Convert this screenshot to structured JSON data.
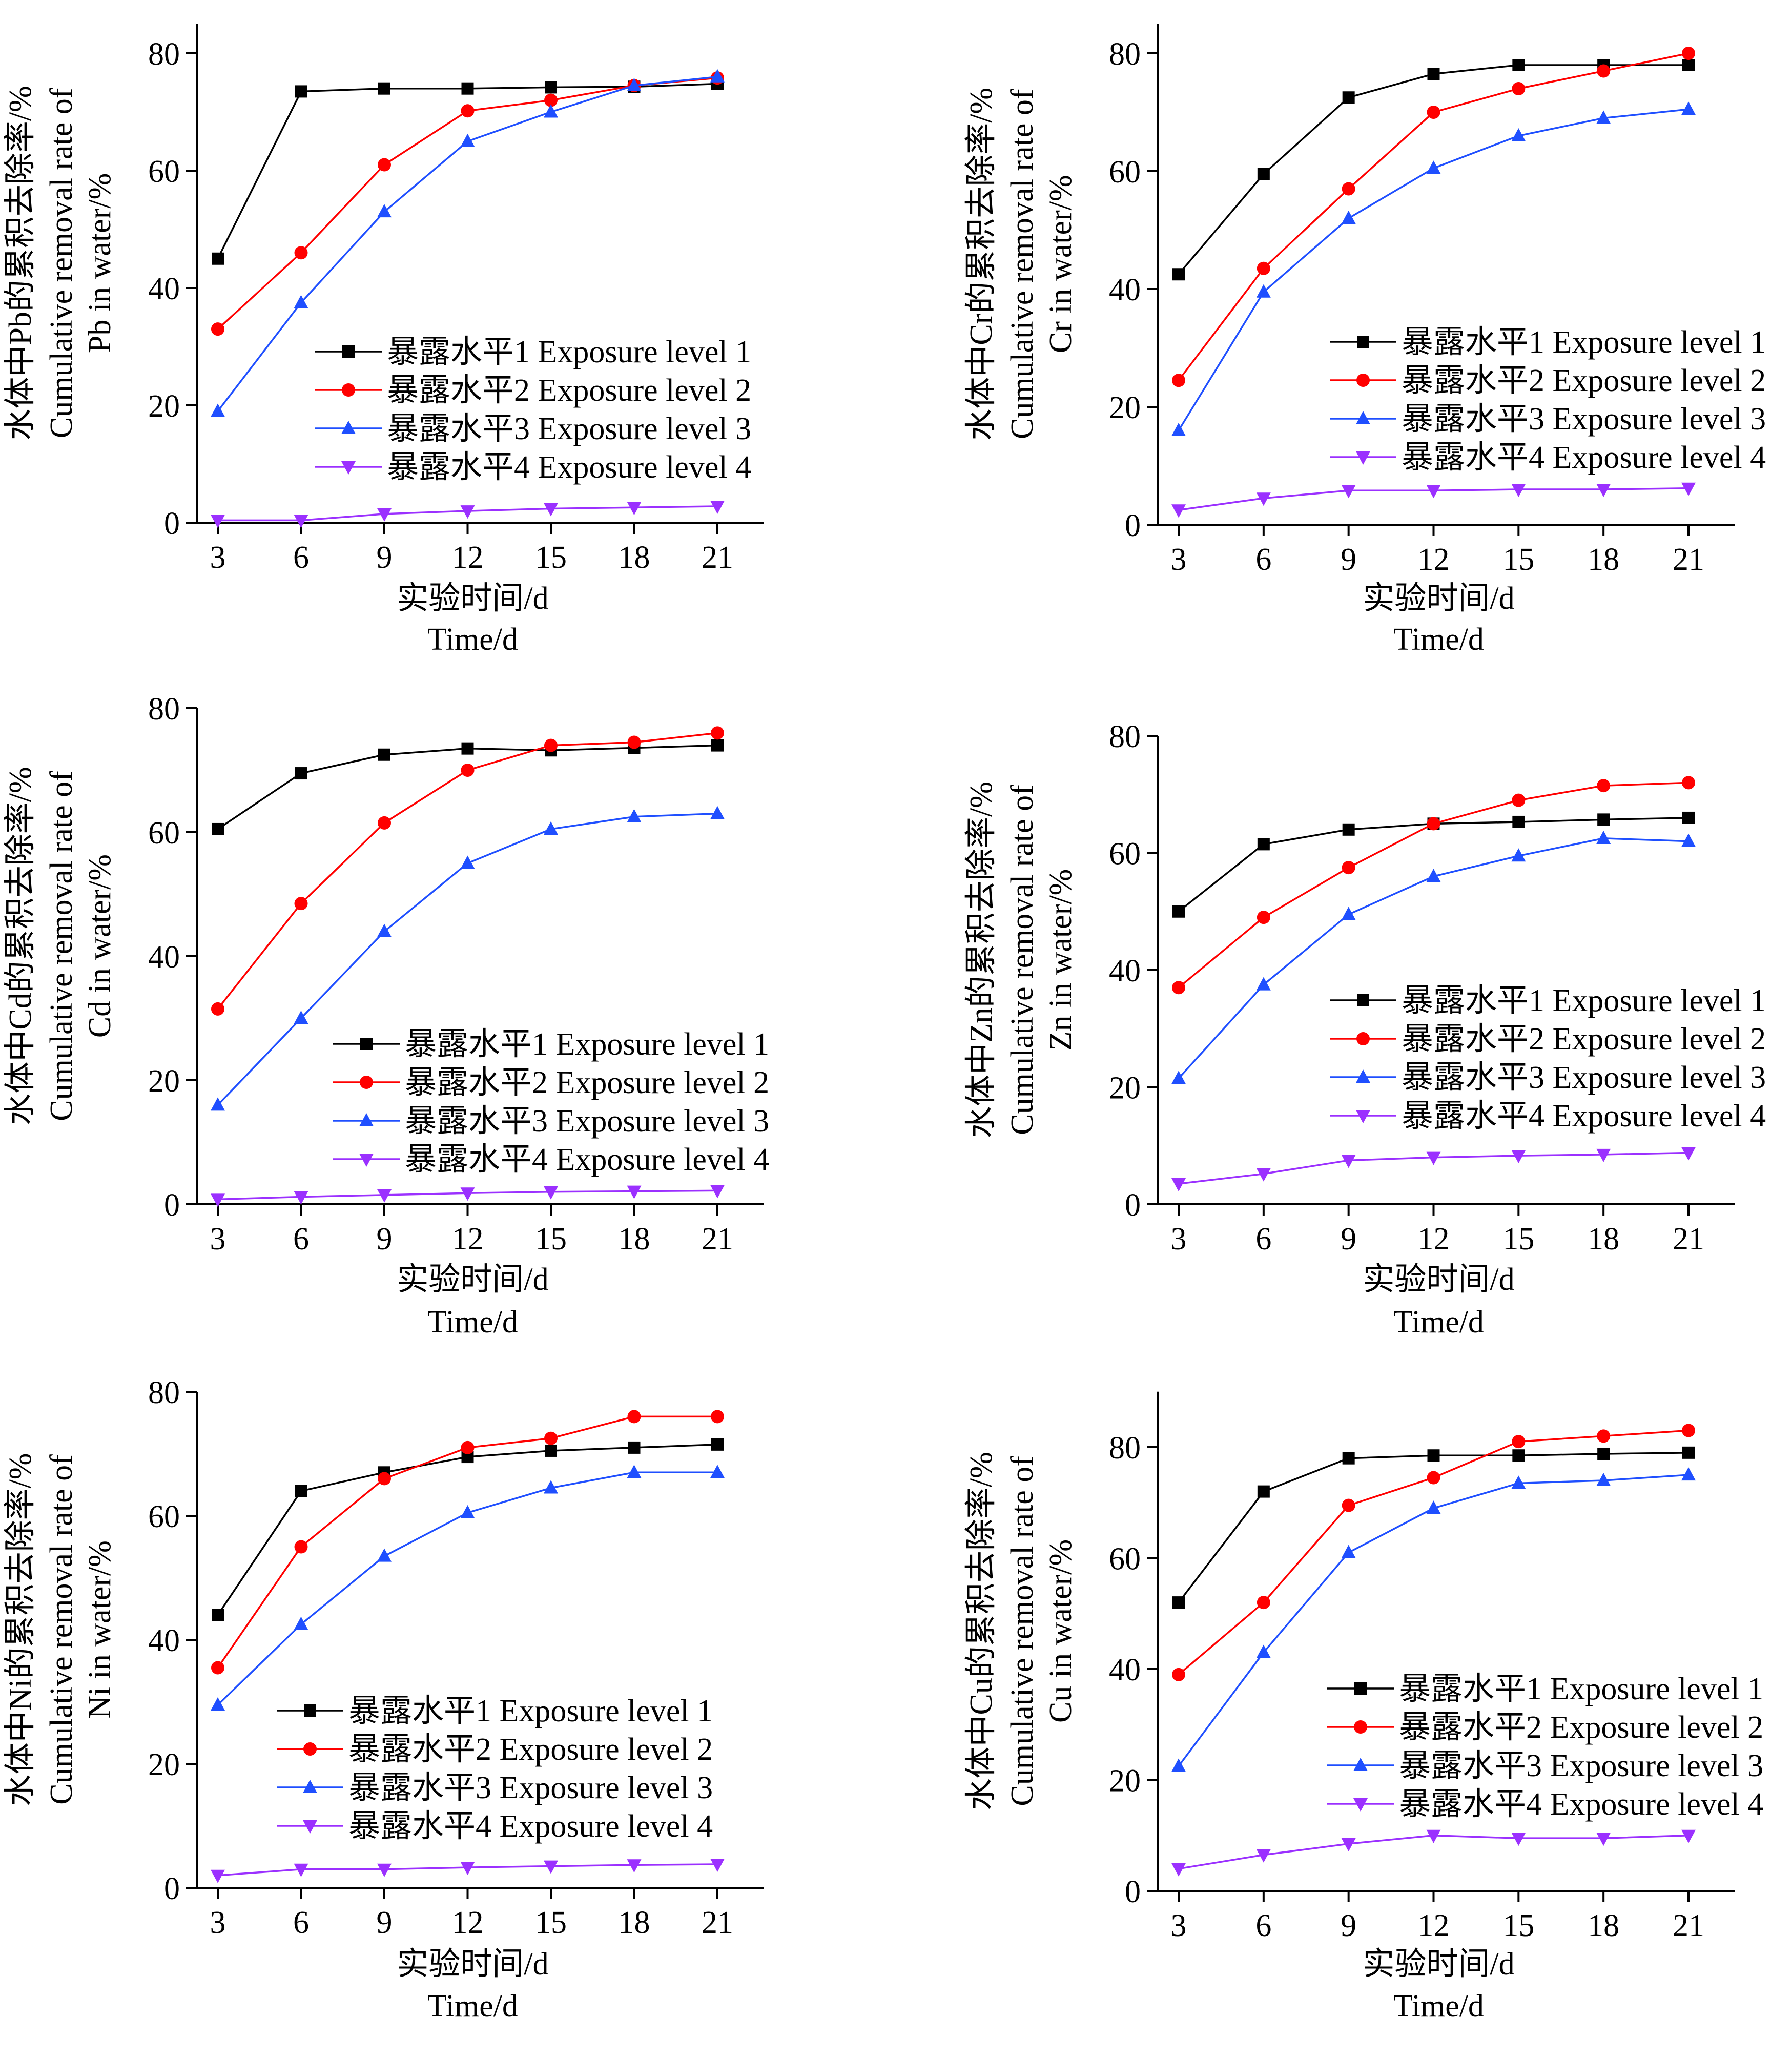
{
  "x_ticks": [
    3,
    6,
    9,
    12,
    15,
    18,
    21
  ],
  "y_ticks": [
    0,
    20,
    40,
    60,
    80
  ],
  "xlabel_cn": "实验时间/d",
  "xlabel_en": "Time/d",
  "legend_labels": [
    "暴露水平1 Exposure level 1",
    "暴露水平2 Exposure level 2",
    "暴露水平3 Exposure level 3",
    "暴露水平4 Exposure level 4"
  ],
  "series_styles": [
    {
      "color": "#000000",
      "marker": "square"
    },
    {
      "color": "#ff0000",
      "marker": "circle"
    },
    {
      "color": "#1f4fff",
      "marker": "triangle-up"
    },
    {
      "color": "#9b30ff",
      "marker": "triangle-down"
    }
  ],
  "chart_data": [
    {
      "type": "line",
      "metal": "Pb",
      "ylabel_lines": [
        "水体中Pb的累积去除率/%",
        "Cumulative removal rate of",
        "Pb in water/%"
      ],
      "xlabel": [
        "实验时间/d",
        "Time/d"
      ],
      "ylim": [
        0,
        85
      ],
      "xlim": [
        2,
        22
      ],
      "grid": false,
      "legend": "right",
      "x": [
        3,
        6,
        9,
        12,
        15,
        18,
        21
      ],
      "series": [
        {
          "name": "暴露水平1 Exposure level 1",
          "values": [
            45,
            73.5,
            74,
            74,
            74.2,
            74.3,
            74.8
          ]
        },
        {
          "name": "暴露水平2 Exposure level 2",
          "values": [
            33,
            46,
            61,
            70.2,
            72,
            74.5,
            75.8
          ]
        },
        {
          "name": "暴露水平3 Exposure level 3",
          "values": [
            19,
            37.5,
            53,
            65,
            70,
            74.5,
            76
          ]
        },
        {
          "name": "暴露水平4 Exposure level 4",
          "values": [
            0.4,
            0.4,
            1.5,
            2,
            2.4,
            2.6,
            2.8
          ]
        }
      ]
    },
    {
      "type": "line",
      "metal": "Cr",
      "ylabel_lines": [
        "水体中Cr的累积去除率/%",
        "Cumulative removal rate of",
        "Cr in water/%"
      ],
      "xlabel": [
        "实验时间/d",
        "Time/d"
      ],
      "ylim": [
        0,
        85
      ],
      "xlim": [
        2,
        22
      ],
      "grid": false,
      "legend": "right",
      "x": [
        3,
        6,
        9,
        12,
        15,
        18,
        21
      ],
      "series": [
        {
          "name": "暴露水平1 Exposure level 1",
          "values": [
            42.5,
            59.5,
            72.5,
            76.5,
            78,
            78,
            78
          ]
        },
        {
          "name": "暴露水平2 Exposure level 2",
          "values": [
            24.5,
            43.5,
            57,
            70,
            74,
            77,
            80
          ]
        },
        {
          "name": "暴露水平3 Exposure level 3",
          "values": [
            16,
            39.5,
            52,
            60.5,
            66,
            69,
            70.5
          ]
        },
        {
          "name": "暴露水平4 Exposure level 4",
          "values": [
            2.5,
            4.5,
            5.8,
            5.8,
            6,
            6,
            6.2
          ]
        }
      ]
    },
    {
      "type": "line",
      "metal": "Cd",
      "ylabel_lines": [
        "水体中Cd的累积去除率/%",
        "Cumulative removal rate of",
        "Cd in water/%"
      ],
      "xlabel": [
        "实验时间/d",
        "Time/d"
      ],
      "ylim": [
        0,
        80
      ],
      "xlim": [
        2,
        22
      ],
      "grid": false,
      "legend": "right",
      "x": [
        3,
        6,
        9,
        12,
        15,
        18,
        21
      ],
      "series": [
        {
          "name": "暴露水平1 Exposure level 1",
          "values": [
            60.5,
            69.5,
            72.5,
            73.5,
            73.2,
            73.6,
            74
          ]
        },
        {
          "name": "暴露水平2 Exposure level 2",
          "values": [
            31.5,
            48.5,
            61.5,
            70,
            74,
            74.5,
            76
          ]
        },
        {
          "name": "暴露水平3 Exposure level 3",
          "values": [
            16,
            30,
            44,
            55,
            60.5,
            62.5,
            63
          ]
        },
        {
          "name": "暴露水平4 Exposure level 4",
          "values": [
            0.8,
            1.2,
            1.5,
            1.8,
            2,
            2.1,
            2.2
          ]
        }
      ]
    },
    {
      "type": "line",
      "metal": "Zn",
      "ylabel_lines": [
        "水体中Zn的累积去除率/%",
        "Cumulative removal rate of",
        "Zn in water/%"
      ],
      "xlabel": [
        "实验时间/d",
        "Time/d"
      ],
      "ylim": [
        0,
        80
      ],
      "xlim": [
        2,
        22
      ],
      "grid": false,
      "legend": "right",
      "x": [
        3,
        6,
        9,
        12,
        15,
        18,
        21
      ],
      "series": [
        {
          "name": "暴露水平1 Exposure level 1",
          "values": [
            50,
            61.5,
            64,
            65,
            65.3,
            65.7,
            66
          ]
        },
        {
          "name": "暴露水平2 Exposure level 2",
          "values": [
            37,
            49,
            57.5,
            65,
            69,
            71.5,
            72
          ]
        },
        {
          "name": "暴露水平3 Exposure level 3",
          "values": [
            21.5,
            37.5,
            49.5,
            56,
            59.5,
            62.5,
            62
          ]
        },
        {
          "name": "暴露水平4 Exposure level 4",
          "values": [
            3.5,
            5.2,
            7.5,
            8,
            8.3,
            8.5,
            8.8
          ]
        }
      ]
    },
    {
      "type": "line",
      "metal": "Ni",
      "ylabel_lines": [
        "水体中Ni的累积去除率/%",
        "Cumulative removal rate of",
        "Ni in water/%"
      ],
      "xlabel": [
        "实验时间/d",
        "Time/d"
      ],
      "ylim": [
        0,
        80
      ],
      "xlim": [
        2,
        22
      ],
      "grid": false,
      "legend": "right",
      "x": [
        3,
        6,
        9,
        12,
        15,
        18,
        21
      ],
      "series": [
        {
          "name": "暴露水平1 Exposure level 1",
          "values": [
            44,
            64,
            67,
            69.5,
            70.5,
            71,
            71.5
          ]
        },
        {
          "name": "暴露水平2 Exposure level 2",
          "values": [
            35.5,
            55,
            66,
            71,
            72.5,
            76,
            76
          ]
        },
        {
          "name": "暴露水平3 Exposure level 3",
          "values": [
            29.5,
            42.5,
            53.5,
            60.5,
            64.5,
            67,
            67
          ]
        },
        {
          "name": "暴露水平4 Exposure level 4",
          "values": [
            2,
            3,
            3,
            3.3,
            3.5,
            3.7,
            3.8
          ]
        }
      ]
    },
    {
      "type": "line",
      "metal": "Cu",
      "ylabel_lines": [
        "水体中Cu的累积去除率/%",
        "Cumulative removal rate of",
        "Cu in water/%"
      ],
      "xlabel": [
        "实验时间/d",
        "Time/d"
      ],
      "ylim": [
        0,
        90
      ],
      "xlim": [
        2,
        22
      ],
      "grid": false,
      "legend": "right",
      "x": [
        3,
        6,
        9,
        12,
        15,
        18,
        21
      ],
      "series": [
        {
          "name": "暴露水平1 Exposure level 1",
          "values": [
            52,
            72,
            78,
            78.5,
            78.5,
            78.8,
            79
          ]
        },
        {
          "name": "暴露水平2 Exposure level 2",
          "values": [
            39,
            52,
            69.5,
            74.5,
            81,
            82,
            83
          ]
        },
        {
          "name": "暴露水平3 Exposure level 3",
          "values": [
            22.5,
            43,
            61,
            69,
            73.5,
            74,
            75
          ]
        },
        {
          "name": "暴露水平4 Exposure level 4",
          "values": [
            4,
            6.5,
            8.5,
            10,
            9.5,
            9.5,
            10
          ]
        }
      ]
    }
  ]
}
